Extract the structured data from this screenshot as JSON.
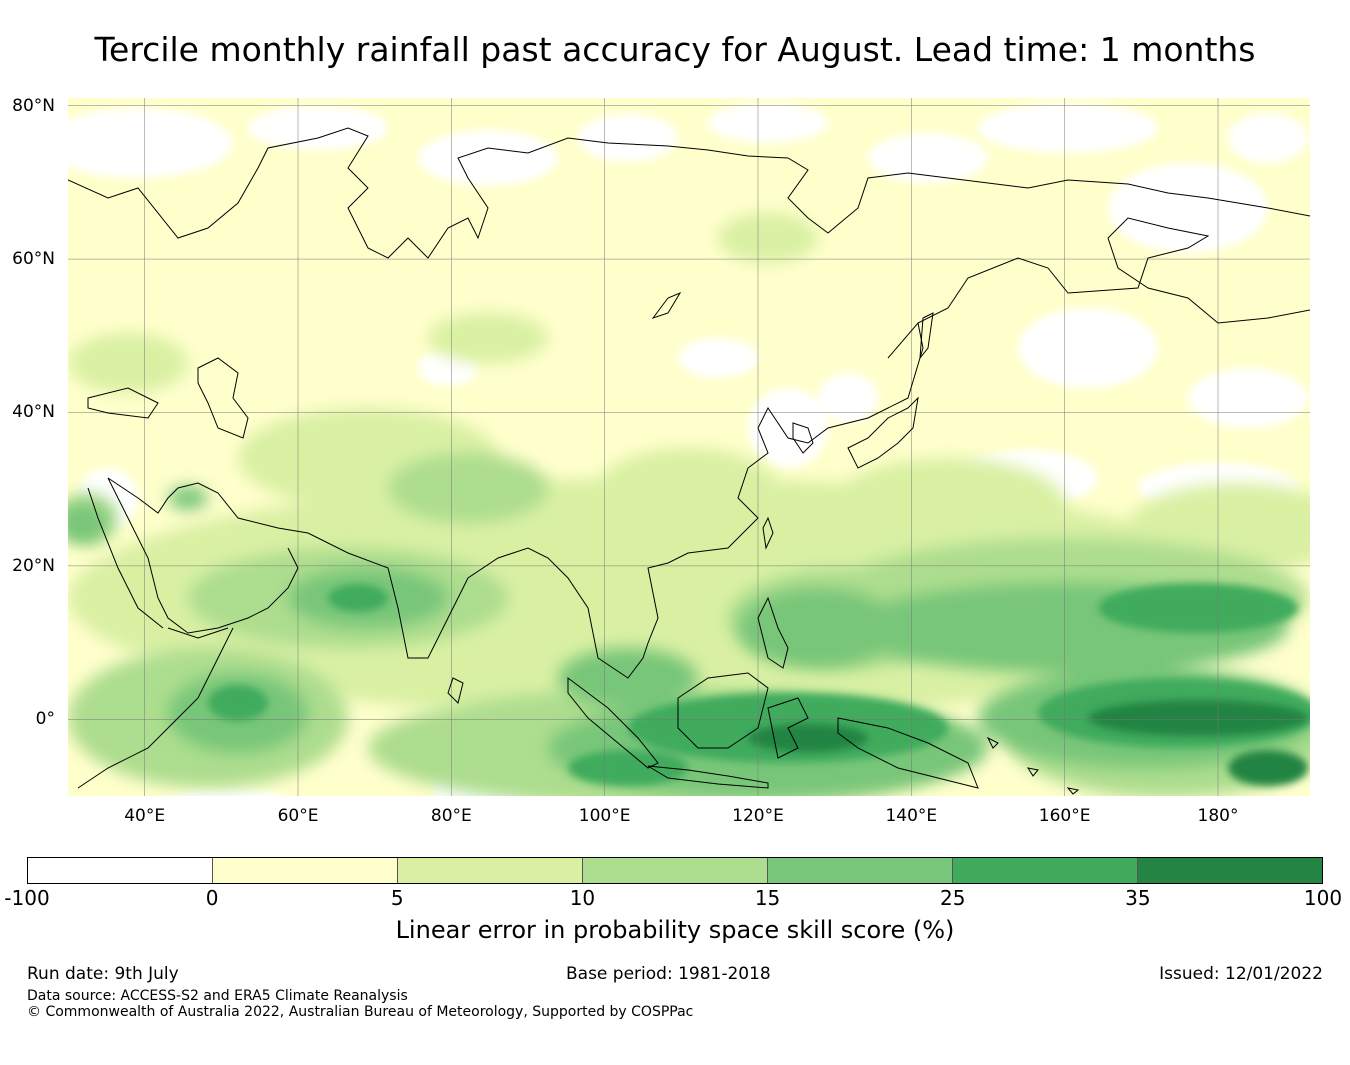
{
  "title": "Tercile monthly rainfall past accuracy for August. Lead time: 1 months",
  "map": {
    "lat_labels": [
      "80°N",
      "60°N",
      "40°N",
      "20°N",
      "0°"
    ],
    "lat_values": [
      80,
      60,
      40,
      20,
      0
    ],
    "lon_labels": [
      "40°E",
      "60°E",
      "80°E",
      "100°E",
      "120°E",
      "140°E",
      "160°E",
      "180°"
    ],
    "lon_values": [
      40,
      60,
      80,
      100,
      120,
      140,
      160,
      180
    ],
    "lon_range": [
      30,
      192
    ],
    "lat_range": [
      -10,
      81
    ],
    "coastline_color": "#000000",
    "gridline_color": "#777777"
  },
  "colorbar": {
    "ticks": [
      "-100",
      "0",
      "5",
      "10",
      "15",
      "25",
      "35",
      "100"
    ],
    "colors": [
      "#ffffff",
      "#ffffcc",
      "#d9f0a3",
      "#addd8e",
      "#78c679",
      "#41ab5d",
      "#238443"
    ],
    "label": "Linear error in probability space skill score (%)"
  },
  "footer": {
    "run_date": "Run date: 9th July",
    "base_period": "Base period: 1981-2018",
    "issued": "Issued: 12/01/2022",
    "data_source": "Data source: ACCESS-S2 and ERA5 Climate Reanalysis",
    "copyright": "© Commonwealth of Australia 2022, Australian Bureau of Meteorology, Supported by COSPPac"
  }
}
